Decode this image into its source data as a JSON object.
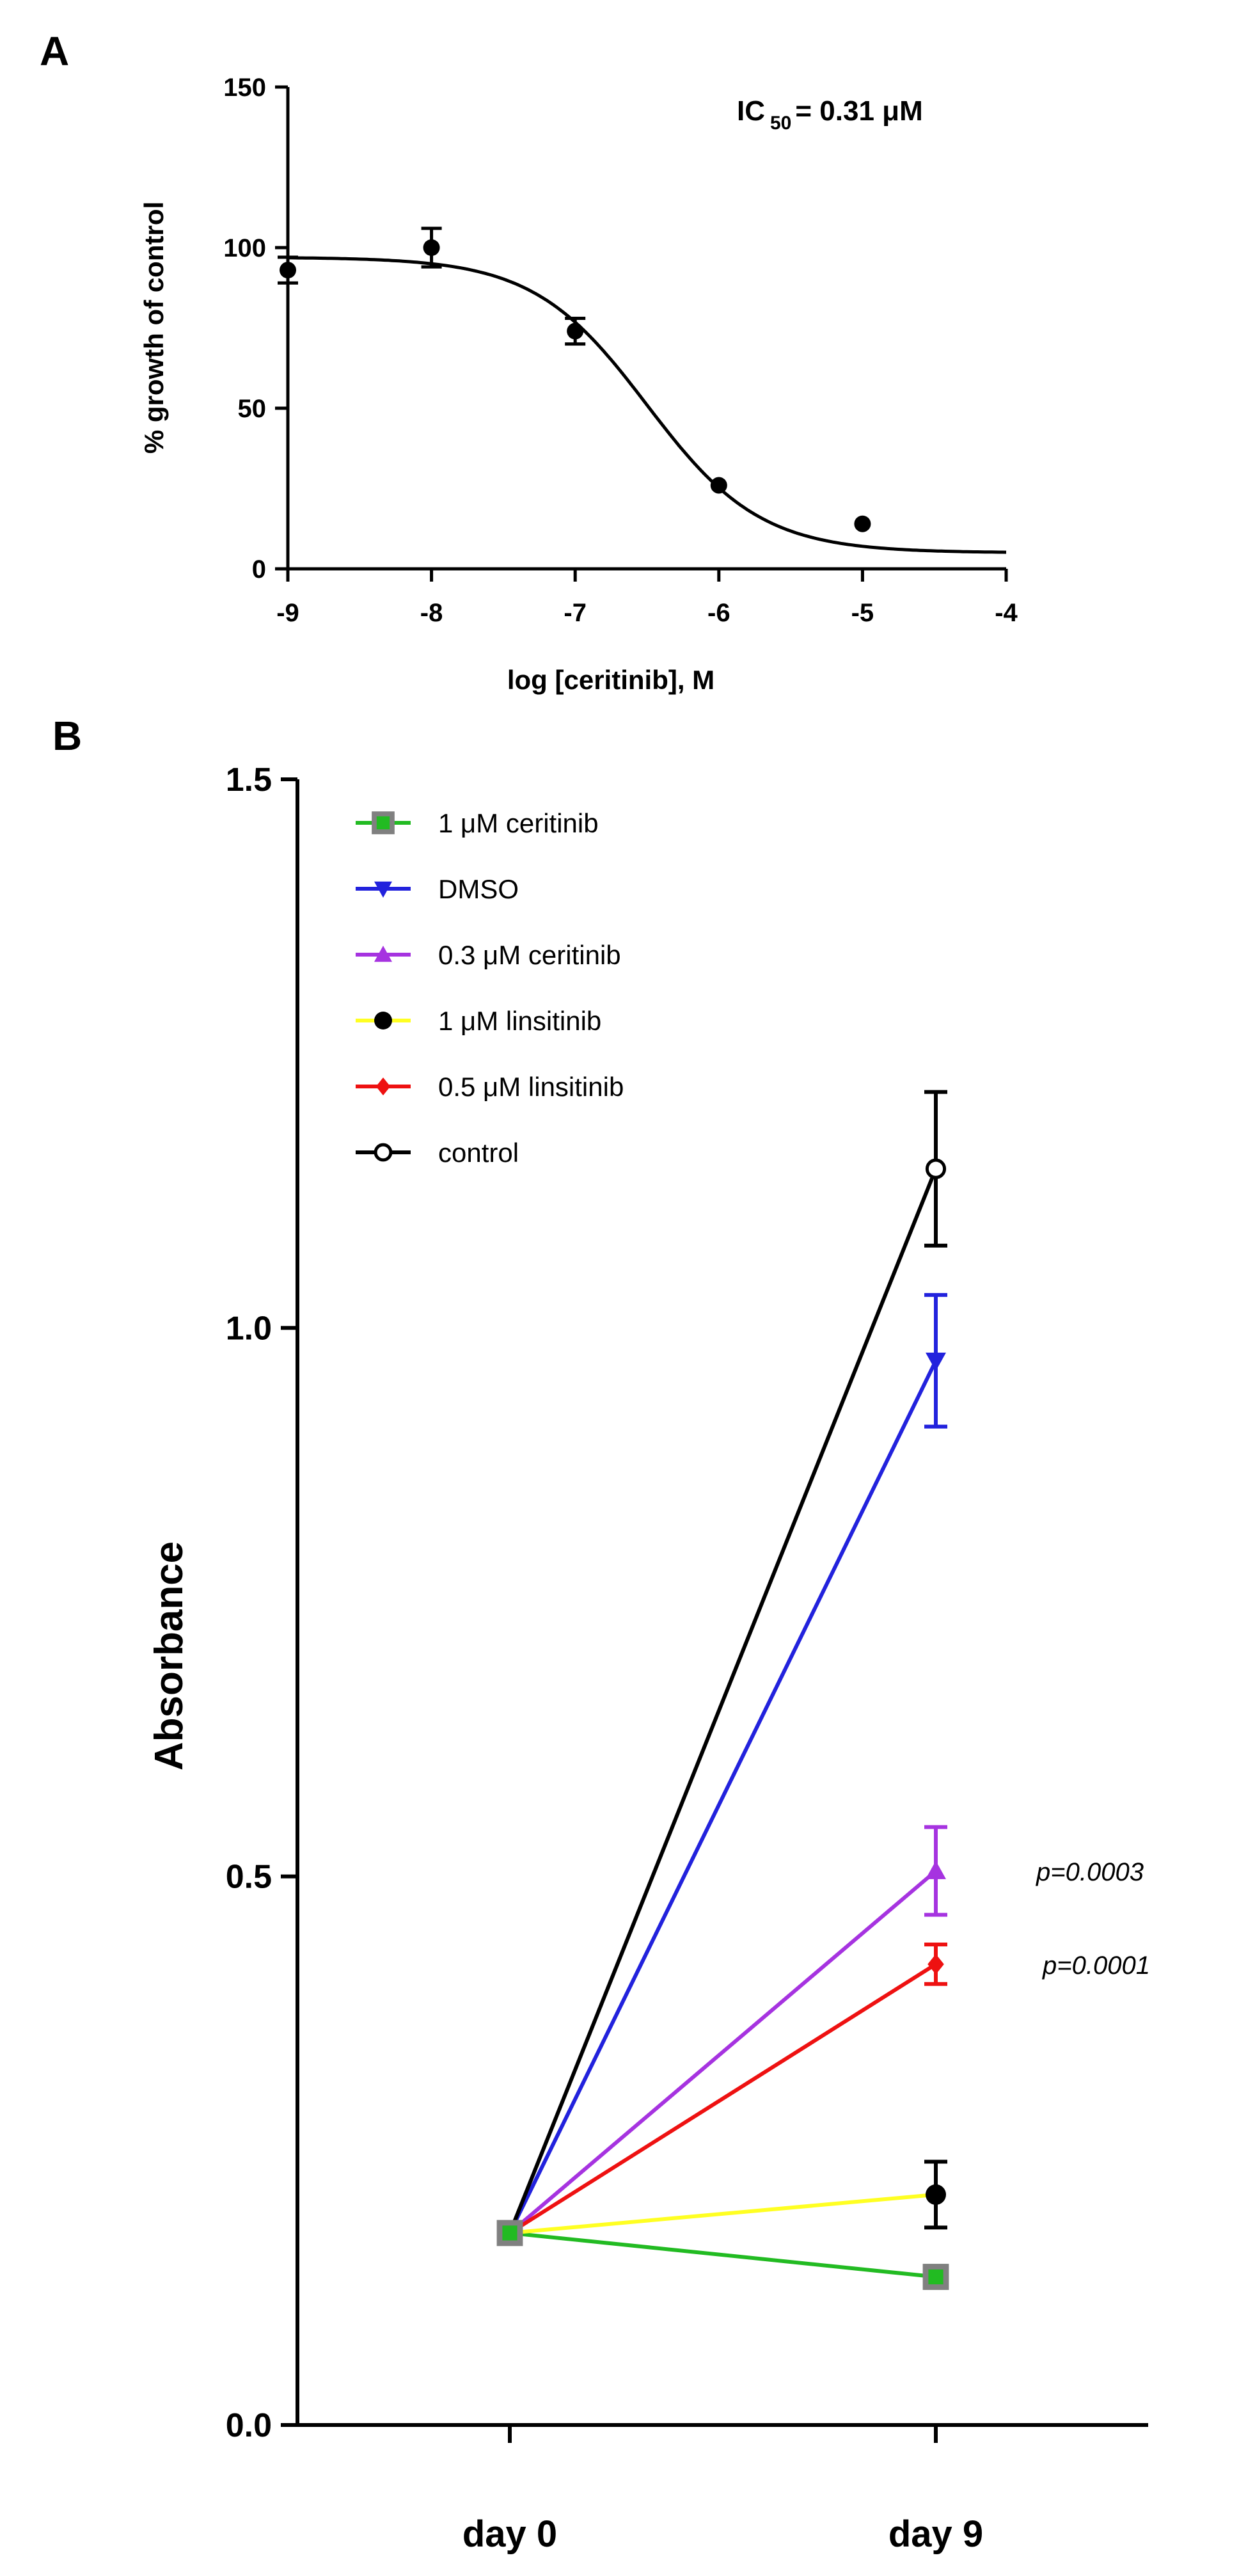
{
  "panel_a_label": "A",
  "panel_b_label": "B",
  "chart_data": [
    {
      "type": "scatter",
      "title": "",
      "annotation": {
        "label": "IC",
        "subscript": "50",
        "value": "= 0.31 μM"
      },
      "xlabel": "log [ceritinib], M",
      "ylabel": "% growth of control",
      "xlim": [
        -9,
        -4
      ],
      "ylim": [
        0,
        150
      ],
      "xticks": [
        -9,
        -8,
        -7,
        -6,
        -5,
        -4
      ],
      "xtick_labels": [
        "-9",
        "-8",
        "-7",
        "-6",
        "-5",
        "-4"
      ],
      "yticks": [
        0,
        50,
        100,
        150
      ],
      "ytick_labels": [
        "0",
        "50",
        "100",
        "150"
      ],
      "points": [
        {
          "x": -9,
          "y": 93,
          "err": 4
        },
        {
          "x": -8,
          "y": 100,
          "err": 6
        },
        {
          "x": -7,
          "y": 74,
          "err": 4
        },
        {
          "x": -6,
          "y": 26,
          "err": 0
        },
        {
          "x": -5,
          "y": 14,
          "err": 0
        }
      ],
      "fit": {
        "model": "four-parameter logistic",
        "top": 97,
        "bottom": 5,
        "logIC50": -6.5,
        "hill": 1.1
      }
    },
    {
      "type": "line",
      "title": "",
      "xlabel": "",
      "ylabel": "Absorbance",
      "categories": [
        "day 0",
        "day 9"
      ],
      "ylim": [
        0,
        1.5
      ],
      "yticks": [
        0,
        0.5,
        1,
        1.5
      ],
      "ytick_labels": [
        "0.0",
        "0.5",
        "1.0",
        "1.5"
      ],
      "series": [
        {
          "name": "1 μM ceritinib",
          "color": "#22bb22",
          "marker": "square-gray",
          "values": [
            0.175,
            0.135
          ],
          "errors": [
            0,
            0.01
          ]
        },
        {
          "name": "DMSO",
          "color": "#2222dd",
          "marker": "triangle-down",
          "values": [
            0.175,
            0.97
          ],
          "errors": [
            0,
            0.06
          ]
        },
        {
          "name": "0.3 μM ceritinib",
          "color": "#a633e0",
          "marker": "triangle-up",
          "values": [
            0.175,
            0.505
          ],
          "errors": [
            0,
            0.04
          ]
        },
        {
          "name": "1 μM linsitinib",
          "color": "#ffff22",
          "marker": "circle-black",
          "values": [
            0.175,
            0.21
          ],
          "errors": [
            0,
            0.03
          ]
        },
        {
          "name": "0.5 μM linsitinib",
          "color": "#ee1111",
          "marker": "diamond",
          "values": [
            0.175,
            0.42
          ],
          "errors": [
            0,
            0.018
          ]
        },
        {
          "name": "control",
          "color": "#000000",
          "marker": "circle-open",
          "values": [
            0.175,
            1.145
          ],
          "errors": [
            0,
            0.07
          ]
        }
      ],
      "annotations": [
        {
          "text": "p=0.0003",
          "at_value": 0.505
        },
        {
          "text": "p=0.0001",
          "at_value": 0.42
        }
      ]
    }
  ]
}
